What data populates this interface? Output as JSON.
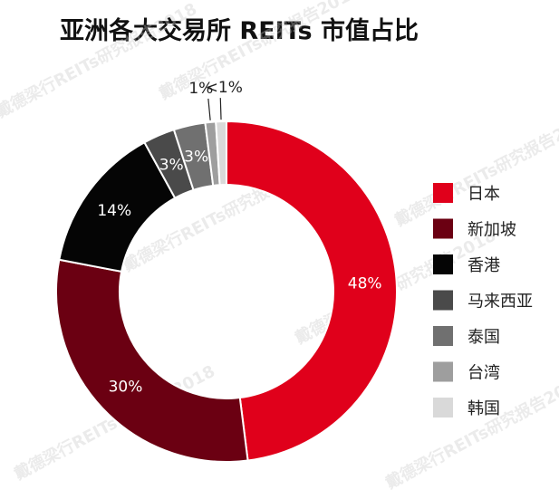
{
  "chart_data": {
    "type": "pie",
    "donut": true,
    "title": "亚洲各大交易所 REITs 市值占比",
    "watermark": "戴德梁行REITs研究报告2018",
    "slices": [
      {
        "name": "日本",
        "value": 48,
        "label": "48%",
        "color": "#e0001b",
        "label_color": "#ffffff"
      },
      {
        "name": "新加坡",
        "value": 30,
        "label": "30%",
        "color": "#6b0012",
        "label_color": "#ffffff"
      },
      {
        "name": "香港",
        "value": 14,
        "label": "14%",
        "color": "#050505",
        "label_color": "#ffffff"
      },
      {
        "name": "马来西亚",
        "value": 3,
        "label": "3%",
        "color": "#4a4a4a",
        "label_color": "#ffffff"
      },
      {
        "name": "泰国",
        "value": 3,
        "label": "3%",
        "color": "#707070",
        "label_color": "#ffffff"
      },
      {
        "name": "台湾",
        "value": 1,
        "label": "1%",
        "color": "#9e9e9e",
        "label_color": "#222222"
      },
      {
        "name": "韩国",
        "value": 1,
        "label": "<1%",
        "color": "#d9d9d9",
        "label_color": "#222222"
      }
    ],
    "legend_position": "right"
  }
}
